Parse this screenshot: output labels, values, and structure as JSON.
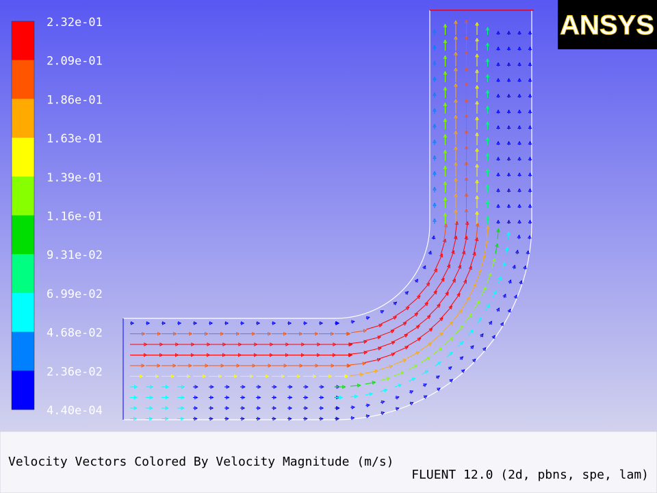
{
  "legend": {
    "labels": [
      "2.32e-01",
      "2.09e-01",
      "1.86e-01",
      "1.63e-01",
      "1.39e-01",
      "1.16e-01",
      "9.31e-02",
      "6.99e-02",
      "4.68e-02",
      "2.36e-02",
      "4.40e-04"
    ]
  },
  "logo": "ANSYS",
  "caption": "Velocity Vectors Colored By Velocity Magnitude (m/s)",
  "solver": "FLUENT 12.0 (2d, pbns, spe, lam)"
}
